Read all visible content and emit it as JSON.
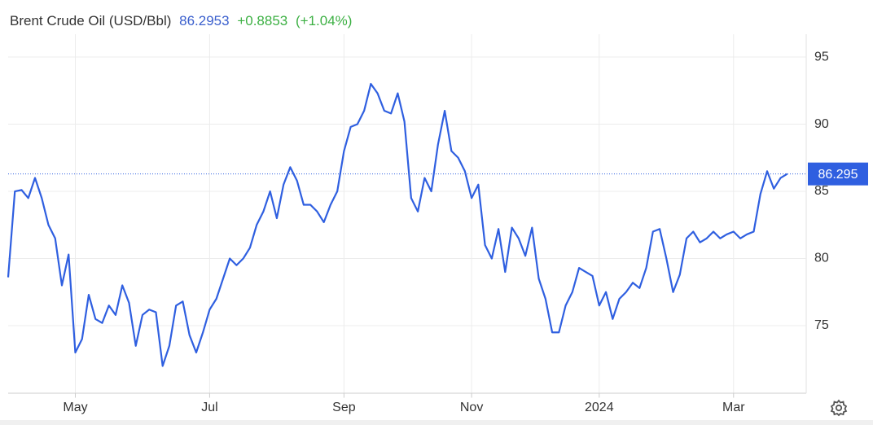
{
  "chart_data": {
    "type": "line",
    "title": "Brent Crude Oil (USD/Bbl)",
    "price": 86.2953,
    "change": "+0.8853",
    "change_pct": "(+1.04%)",
    "price_label": "86.295",
    "color": "#2f5fe0",
    "categories": [
      null,
      null,
      null,
      null,
      null,
      null,
      null,
      null,
      null,
      null,
      "May",
      null,
      null,
      null,
      null,
      null,
      null,
      null,
      null,
      null,
      null,
      null,
      null,
      null,
      null,
      null,
      null,
      null,
      null,
      null,
      "Jul",
      null,
      null,
      null,
      null,
      null,
      null,
      null,
      null,
      null,
      null,
      null,
      null,
      null,
      null,
      null,
      null,
      null,
      null,
      null,
      "Sep",
      null,
      null,
      null,
      null,
      null,
      null,
      null,
      null,
      null,
      null,
      null,
      null,
      null,
      null,
      null,
      null,
      null,
      null,
      "Nov",
      null,
      null,
      null,
      null,
      null,
      null,
      null,
      null,
      null,
      null,
      null,
      null,
      null,
      null,
      null,
      null,
      null,
      null,
      "2024",
      null,
      null,
      null,
      null,
      null,
      null,
      null,
      null,
      null,
      null,
      null,
      null,
      null,
      null,
      null,
      null,
      null,
      null,
      null,
      "Mar",
      null,
      null,
      null,
      null,
      null,
      null,
      null,
      null
    ],
    "values": [
      78.6,
      85.0,
      85.1,
      84.5,
      86.0,
      84.5,
      82.5,
      81.5,
      78.0,
      80.3,
      73.0,
      74.0,
      77.3,
      75.5,
      75.2,
      76.5,
      75.8,
      78.0,
      76.7,
      73.5,
      75.8,
      76.2,
      76.0,
      72.0,
      73.5,
      76.5,
      76.8,
      74.3,
      73.0,
      74.5,
      76.2,
      77.0,
      78.5,
      80.0,
      79.5,
      80.0,
      80.8,
      82.5,
      83.5,
      85.0,
      83.0,
      85.5,
      86.8,
      85.8,
      84.0,
      84.0,
      83.5,
      82.7,
      84.0,
      85.0,
      88.0,
      89.8,
      90.0,
      91.0,
      93.0,
      92.3,
      91.0,
      90.8,
      92.3,
      90.2,
      84.5,
      83.5,
      86.0,
      85.0,
      88.5,
      91.0,
      88.0,
      87.5,
      86.5,
      84.5,
      85.5,
      81.0,
      80.0,
      82.2,
      79.0,
      82.3,
      81.5,
      80.2,
      82.3,
      78.5,
      77.0,
      74.5,
      74.5,
      76.5,
      77.5,
      79.3,
      79.0,
      78.7,
      76.5,
      77.5,
      75.5,
      77.0,
      77.5,
      78.2,
      77.8,
      79.3,
      82.0,
      82.2,
      80.0,
      77.5,
      78.8,
      81.5,
      82.0,
      81.2,
      81.5,
      82.0,
      81.5,
      81.8,
      82.0,
      81.5,
      81.8,
      82.0,
      84.8,
      86.5,
      85.2,
      86.0,
      86.3
    ],
    "ylim": [
      70,
      96.7
    ],
    "yticks": [
      75,
      80,
      85,
      90,
      95
    ],
    "grid": true
  }
}
